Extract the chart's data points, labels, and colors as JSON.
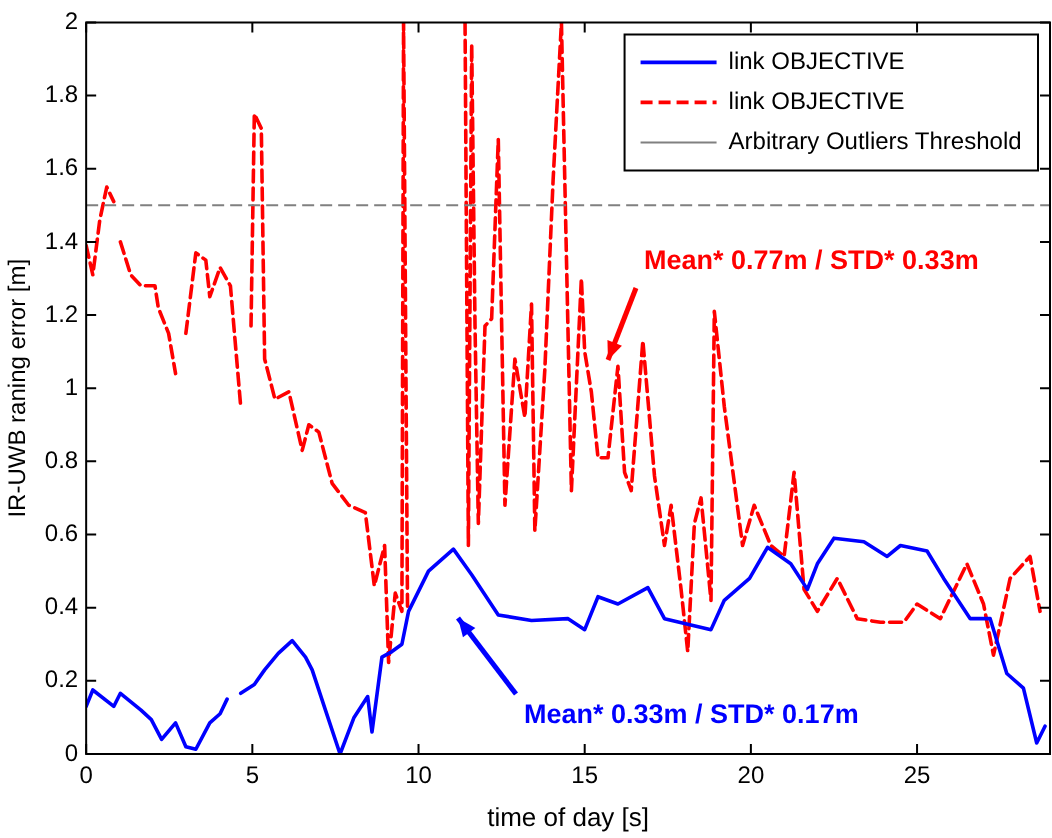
{
  "chart_data": {
    "type": "line",
    "xlabel": "time of day [s]",
    "ylabel": "IR-UWB raning error [m]",
    "xlim": [
      0,
      29
    ],
    "ylim": [
      0,
      2
    ],
    "xticks": [
      0,
      5,
      10,
      15,
      20,
      25
    ],
    "yticks": [
      0,
      0.2,
      0.4,
      0.6,
      0.8,
      1,
      1.2,
      1.4,
      1.6,
      1.8,
      2
    ],
    "grid": false,
    "legend": "top right",
    "marker": "none",
    "series": [
      {
        "name": "link OBJECTIVE",
        "color": "#0000ff",
        "line_style": "solid",
        "x": [
          0,
          0.2,
          0.83,
          1.03,
          1.65,
          1.96,
          2.27,
          2.69,
          3.0,
          3.3,
          3.72,
          4.03,
          4.24,
          4.45,
          4.65,
          5.06,
          5.37,
          5.78,
          6.2,
          6.6,
          6.8,
          7.2,
          7.64,
          8.06,
          8.47,
          8.6,
          8.9,
          9.2,
          9.5,
          9.7,
          10.3,
          11.05,
          11.6,
          12.4,
          13.4,
          14.5,
          15,
          15.4,
          16.0,
          16.9,
          17.4,
          18.1,
          18.8,
          19.2,
          19.96,
          20.5,
          21.2,
          21.7,
          22.0,
          22.5,
          23.4,
          24.1,
          24.5,
          25.3,
          25.8,
          26.6,
          27.2,
          27.7,
          28.2,
          28.6,
          28.85
        ],
        "values": [
          0.13,
          0.175,
          0.13,
          0.166,
          0.12,
          0.094,
          0.04,
          0.085,
          0.02,
          0.013,
          0.085,
          0.11,
          0.15,
          null,
          0.166,
          0.19,
          0.23,
          0.275,
          0.31,
          0.265,
          0.23,
          0.12,
          0,
          0.1,
          0.157,
          0.06,
          0.265,
          0.28,
          0.3,
          0.39,
          0.5,
          0.56,
          0.49,
          0.38,
          0.365,
          0.37,
          0.34,
          0.43,
          0.41,
          0.455,
          0.37,
          0.355,
          0.34,
          0.42,
          0.48,
          0.565,
          0.52,
          0.45,
          0.52,
          0.59,
          0.58,
          0.54,
          0.57,
          0.555,
          0.48,
          0.37,
          0.37,
          0.22,
          0.18,
          0.03,
          0.076
        ]
      },
      {
        "name": "link OBJECTIVE",
        "color": "#ff0000",
        "line_style": "dashed",
        "x": [
          0,
          0.2,
          0.41,
          0.62,
          0.83,
          0.93,
          1.03,
          1.34,
          1.65,
          2.07,
          2.17,
          2.48,
          2.69,
          2.85,
          3.0,
          3.3,
          3.6,
          3.72,
          4.03,
          4.34,
          4.65,
          4.8,
          4.96,
          5.06,
          5.27,
          5.37,
          5.68,
          6.1,
          6.5,
          6.7,
          7.0,
          7.4,
          7.9,
          8.4,
          8.67,
          8.98,
          9.1,
          9.3,
          9.5,
          9.55,
          9.67,
          10.5,
          11.4,
          11.5,
          11.6,
          11.7,
          11.8,
          12.0,
          12.2,
          12.4,
          12.6,
          12.9,
          13.2,
          13.4,
          13.5,
          13.8,
          14.05,
          14.3,
          14.6,
          14.9,
          15.0,
          15.2,
          15.4,
          15.7,
          16.0,
          16.2,
          16.4,
          16.75,
          17.1,
          17.4,
          17.6,
          17.9,
          18.1,
          18.3,
          18.5,
          18.8,
          18.9,
          19.2,
          19.75,
          20.1,
          20.6,
          21.0,
          21.3,
          21.6,
          22.0,
          22.6,
          23.2,
          23.9,
          24.6,
          25.0,
          25.7,
          26.5,
          27.0,
          27.3,
          27.8,
          28.4,
          28.7
        ],
        "values": [
          1.39,
          1.31,
          1.46,
          1.55,
          1.51,
          null,
          1.4,
          1.31,
          1.28,
          1.28,
          1.22,
          1.15,
          1.04,
          null,
          1.15,
          1.37,
          1.35,
          1.25,
          1.33,
          1.28,
          0.95,
          null,
          1.17,
          1.75,
          1.71,
          1.08,
          0.97,
          0.99,
          0.83,
          0.9,
          0.88,
          0.74,
          0.68,
          0.66,
          0.46,
          0.57,
          0.25,
          0.44,
          0.39,
          2,
          0.39,
          null,
          2,
          0.57,
          1.94,
          1.17,
          0.63,
          1.17,
          1.19,
          1.68,
          0.68,
          1.08,
          0.92,
          1.23,
          0.61,
          1.05,
          1.57,
          2,
          0.72,
          1.3,
          1.1,
          0.99,
          0.81,
          0.81,
          1.06,
          0.77,
          0.72,
          1.13,
          0.76,
          0.57,
          0.68,
          0.45,
          0.28,
          0.63,
          0.7,
          0.42,
          1.21,
          0.95,
          0.57,
          0.68,
          0.57,
          0.54,
          0.77,
          0.45,
          0.39,
          0.48,
          0.37,
          0.36,
          0.36,
          0.41,
          0.37,
          0.52,
          0.41,
          0.27,
          0.48,
          0.54,
          0.39
        ]
      }
    ],
    "ref_lines": [
      {
        "axis": "y",
        "value": 1.5,
        "label": "Arbitrary Outliers Threshold",
        "color": "#808080",
        "line_style": "dashed"
      }
    ],
    "annotations": [
      "Mean* 0.77m / STD* 0.33m",
      "Mean* 0.33m / STD* 0.17m"
    ]
  }
}
